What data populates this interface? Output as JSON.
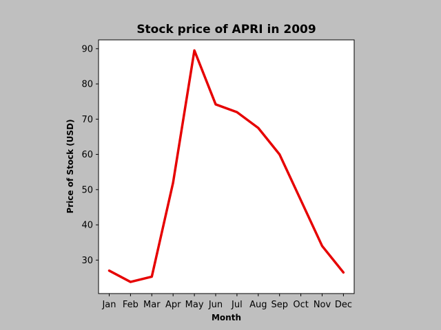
{
  "chart_data": {
    "type": "line",
    "title": "Stock price of APRI in 2009",
    "xlabel": "Month",
    "ylabel": "Price of Stock (USD)",
    "categories": [
      "Jan",
      "Feb",
      "Mar",
      "Apr",
      "May",
      "Jun",
      "Jul",
      "Aug",
      "Sep",
      "Oct",
      "Nov",
      "Dec"
    ],
    "series": [
      {
        "values": [
          27.0,
          23.8,
          25.3,
          52.0,
          89.5,
          74.2,
          72.0,
          67.5,
          60.0,
          47.0,
          34.0,
          26.5
        ]
      }
    ],
    "yticks": [
      30,
      40,
      50,
      60,
      70,
      80,
      90
    ],
    "ylim": [
      20.5,
      92.5
    ],
    "line_color": "#e60000",
    "background_color": "#bfbfbf",
    "plot_background_color": "#ffffff",
    "grid": false,
    "legend": "none"
  }
}
